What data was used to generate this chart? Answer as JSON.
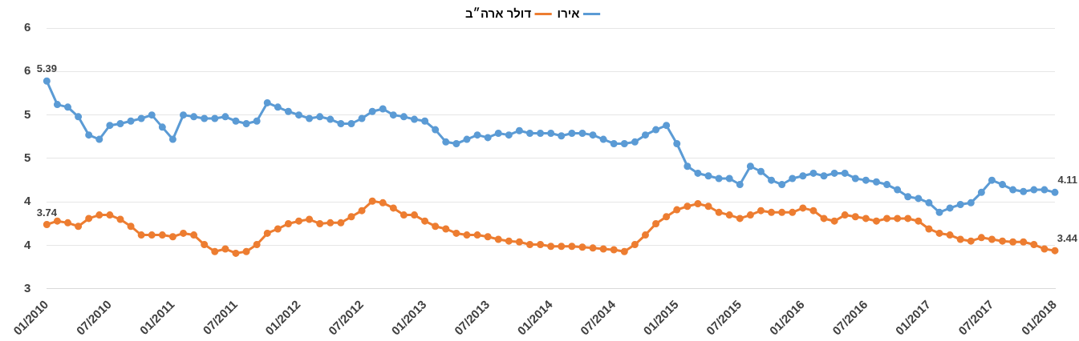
{
  "chart_data": {
    "type": "line",
    "categories": [
      "01/2010",
      null,
      null,
      null,
      null,
      null,
      "07/2010",
      null,
      null,
      null,
      null,
      null,
      "01/2011",
      null,
      null,
      null,
      null,
      null,
      "07/2011",
      null,
      null,
      null,
      null,
      null,
      "01/2012",
      null,
      null,
      null,
      null,
      null,
      "07/2012",
      null,
      null,
      null,
      null,
      null,
      "01/2013",
      null,
      null,
      null,
      null,
      null,
      "07/2013",
      null,
      null,
      null,
      null,
      null,
      "01/2014",
      null,
      null,
      null,
      null,
      null,
      "07/2014",
      null,
      null,
      null,
      null,
      null,
      "01/2015",
      null,
      null,
      null,
      null,
      null,
      "07/2015",
      null,
      null,
      null,
      null,
      null,
      "01/2016",
      null,
      null,
      null,
      null,
      null,
      "07/2016",
      null,
      null,
      null,
      null,
      null,
      "01/2017",
      null,
      null,
      null,
      null,
      null,
      "07/2017",
      null,
      null,
      null,
      null,
      null,
      "01/2018"
    ],
    "series": [
      {
        "name": "אירו",
        "color": "#5b9bd5",
        "values": [
          5.39,
          5.12,
          5.09,
          4.98,
          4.77,
          4.72,
          4.88,
          4.9,
          4.93,
          4.96,
          5.0,
          4.86,
          4.72,
          5.0,
          4.98,
          4.96,
          4.96,
          4.98,
          4.93,
          4.9,
          4.93,
          5.14,
          5.09,
          5.04,
          5.0,
          4.96,
          4.98,
          4.95,
          4.9,
          4.9,
          4.96,
          5.04,
          5.07,
          5.0,
          4.98,
          4.95,
          4.93,
          4.83,
          4.69,
          4.67,
          4.72,
          4.77,
          4.74,
          4.79,
          4.77,
          4.82,
          4.79,
          4.79,
          4.79,
          4.76,
          4.79,
          4.79,
          4.77,
          4.72,
          4.67,
          4.67,
          4.69,
          4.77,
          4.83,
          4.88,
          4.67,
          4.41,
          4.33,
          4.3,
          4.27,
          4.27,
          4.2,
          4.41,
          4.35,
          4.25,
          4.2,
          4.27,
          4.3,
          4.33,
          4.3,
          4.33,
          4.33,
          4.27,
          4.25,
          4.23,
          4.2,
          4.14,
          4.06,
          4.04,
          3.99,
          3.88,
          3.93,
          3.97,
          3.99,
          4.11,
          4.25,
          4.2,
          4.14,
          4.12,
          4.14,
          4.14,
          4.11
        ],
        "value_labels": [
          "5.39",
          null,
          null,
          null,
          null,
          null,
          null,
          null,
          null,
          null,
          null,
          null,
          null,
          null,
          null,
          null,
          null,
          null,
          null,
          null,
          null,
          null,
          null,
          null,
          null,
          null,
          null,
          null,
          null,
          null,
          null,
          null,
          null,
          null,
          null,
          null,
          null,
          null,
          null,
          null,
          null,
          null,
          null,
          null,
          null,
          null,
          null,
          null,
          null,
          null,
          null,
          null,
          null,
          null,
          null,
          null,
          null,
          null,
          null,
          null,
          null,
          null,
          null,
          null,
          null,
          null,
          null,
          null,
          null,
          null,
          null,
          null,
          null,
          null,
          null,
          null,
          null,
          null,
          null,
          null,
          null,
          null,
          null,
          null,
          null,
          null,
          null,
          null,
          null,
          null,
          null,
          null,
          null,
          null,
          null,
          null,
          "4.11"
        ]
      },
      {
        "name": "דולר ארה״ב",
        "color": "#ed7d31",
        "values": [
          3.74,
          3.78,
          3.76,
          3.72,
          3.81,
          3.85,
          3.85,
          3.8,
          3.72,
          3.62,
          3.62,
          3.62,
          3.6,
          3.64,
          3.62,
          3.51,
          3.43,
          3.46,
          3.41,
          3.43,
          3.51,
          3.64,
          3.69,
          3.75,
          3.78,
          3.8,
          3.75,
          3.76,
          3.76,
          3.83,
          3.9,
          4.01,
          3.99,
          3.93,
          3.85,
          3.85,
          3.78,
          3.72,
          3.69,
          3.64,
          3.62,
          3.62,
          3.6,
          3.57,
          3.55,
          3.54,
          3.51,
          3.51,
          3.49,
          3.49,
          3.49,
          3.48,
          3.47,
          3.46,
          3.45,
          3.43,
          3.51,
          3.62,
          3.75,
          3.83,
          3.91,
          3.95,
          3.98,
          3.95,
          3.88,
          3.85,
          3.81,
          3.85,
          3.9,
          3.88,
          3.88,
          3.88,
          3.93,
          3.9,
          3.81,
          3.78,
          3.85,
          3.83,
          3.81,
          3.78,
          3.81,
          3.81,
          3.81,
          3.78,
          3.69,
          3.64,
          3.62,
          3.57,
          3.55,
          3.59,
          3.57,
          3.55,
          3.54,
          3.54,
          3.51,
          3.46,
          3.44
        ],
        "value_labels": [
          "3.74",
          null,
          null,
          null,
          null,
          null,
          null,
          null,
          null,
          null,
          null,
          null,
          null,
          null,
          null,
          null,
          null,
          null,
          null,
          null,
          null,
          null,
          null,
          null,
          null,
          null,
          null,
          null,
          null,
          null,
          null,
          null,
          null,
          null,
          null,
          null,
          null,
          null,
          null,
          null,
          null,
          null,
          null,
          null,
          null,
          null,
          null,
          null,
          null,
          null,
          null,
          null,
          null,
          null,
          null,
          null,
          null,
          null,
          null,
          null,
          null,
          null,
          null,
          null,
          null,
          null,
          null,
          null,
          null,
          null,
          null,
          null,
          null,
          null,
          null,
          null,
          null,
          null,
          null,
          null,
          null,
          null,
          null,
          null,
          null,
          null,
          null,
          null,
          null,
          null,
          null,
          null,
          null,
          null,
          null,
          null,
          "3.44"
        ]
      }
    ],
    "ylim": [
      3,
      6
    ],
    "yticks": [
      3,
      {
        "value": 3.5,
        "label": "4"
      },
      4,
      {
        "value": 4.5,
        "label": "5"
      },
      5,
      {
        "value": 5.5,
        "label": "6"
      },
      6
    ],
    "grid": "y",
    "legend": "top",
    "marker": "circle",
    "line_style": "solid"
  }
}
